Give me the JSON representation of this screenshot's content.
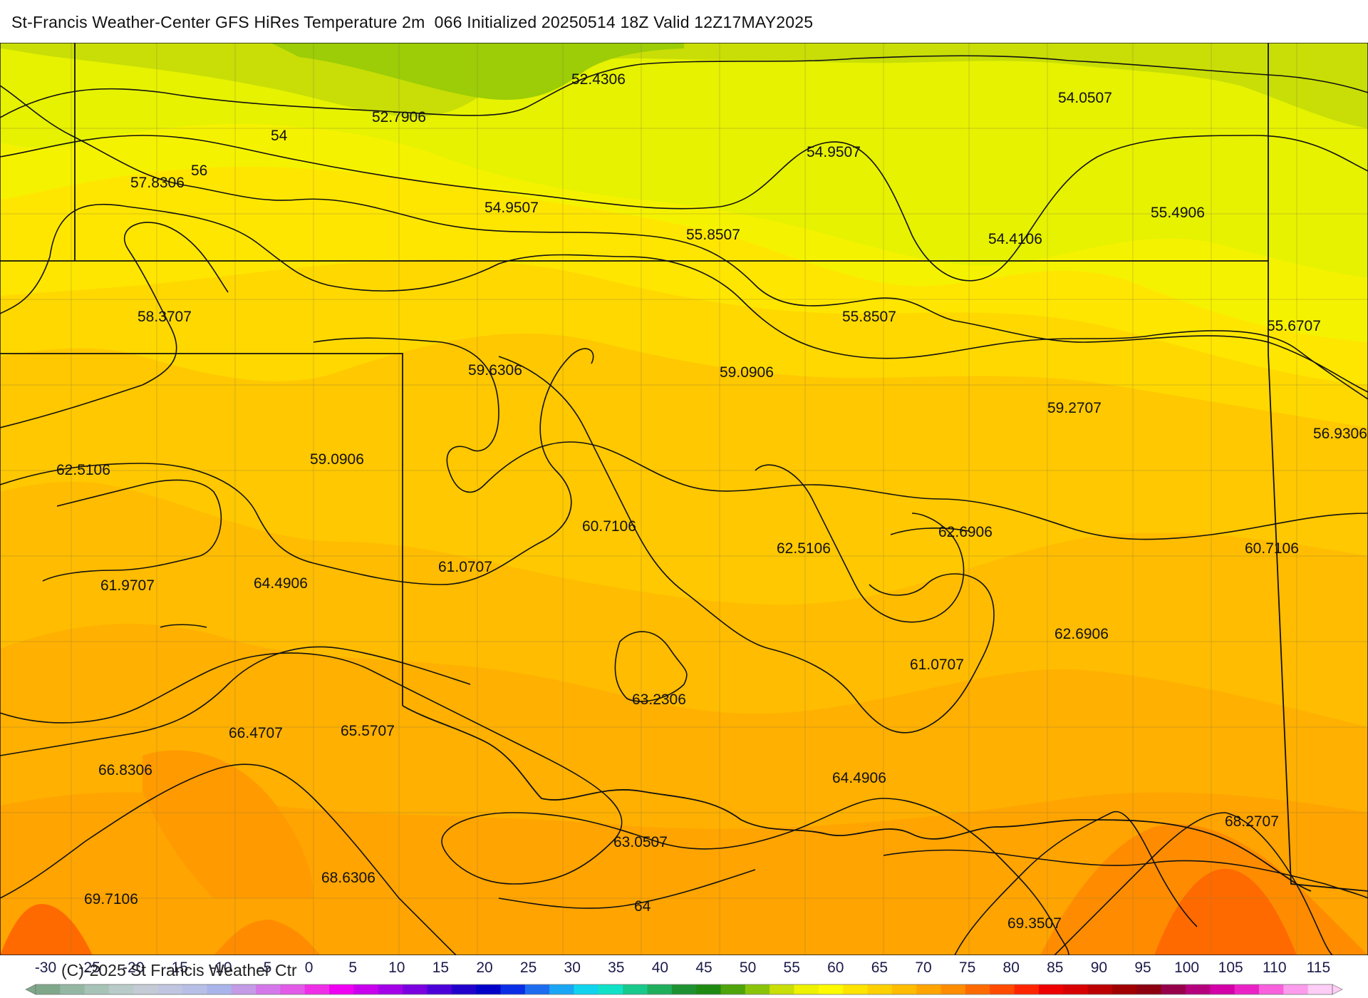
{
  "header": {
    "title": "St-Francis Weather-Center GFS HiRes Temperature 2m  066 Initialized 20250514 18Z Valid 12Z17MAY2025"
  },
  "map": {
    "field": "Temperature 2m",
    "contour_labels": [
      "54",
      "56",
      "64"
    ],
    "point_values": [
      "52.4306",
      "52.7906",
      "54.0507",
      "54.9507",
      "57.8306",
      "54.9507",
      "55.8507",
      "54.4106",
      "55.4906",
      "58.3707",
      "55.8507",
      "55.6707",
      "59.6306",
      "59.0906",
      "59.2707",
      "56.9306",
      "62.5106",
      "59.0906",
      "60.7106",
      "62.5106",
      "62.6906",
      "60.7106",
      "61.0707",
      "61.9707",
      "64.4906",
      "62.6906",
      "63.2306",
      "61.0707",
      "66.4707",
      "65.5707",
      "66.8306",
      "64.4906",
      "68.2707",
      "63.0507",
      "68.6306",
      "69.7106",
      "69.3507"
    ]
  },
  "colorbar": {
    "unit_ticks": [
      "-30",
      "-25",
      "-20",
      "-15",
      "-10",
      "-5",
      "0",
      "5",
      "10",
      "15",
      "20",
      "25",
      "30",
      "35",
      "40",
      "45",
      "50",
      "55",
      "60",
      "65",
      "70",
      "75",
      "80",
      "85",
      "90",
      "95",
      "100",
      "105",
      "110",
      "115"
    ],
    "colors": [
      "#7fa88a",
      "#94b7a4",
      "#a7c3b8",
      "#b9cbc9",
      "#c4cbd6",
      "#c0c5e0",
      "#b7bfe6",
      "#a9b5ea",
      "#c39be6",
      "#d477ea",
      "#e25ae8",
      "#ef2ee8",
      "#f000f2",
      "#c900ee",
      "#a300e8",
      "#7a00e0",
      "#4c00d8",
      "#2200cc",
      "#0000c8",
      "#0a2de6",
      "#1d6cf0",
      "#1aa6f4",
      "#10d4ee",
      "#10e2c8",
      "#18c98c",
      "#1fae5c",
      "#1e9232",
      "#1e8a12",
      "#4ea40a",
      "#8ac40a",
      "#c8de06",
      "#eef200",
      "#fffa00",
      "#ffe400",
      "#ffd000",
      "#ffbc00",
      "#ffa400",
      "#ff8c00",
      "#ff6a00",
      "#ff4a00",
      "#ff2400",
      "#ee0000",
      "#d80000",
      "#bc0000",
      "#a00000",
      "#8c0010",
      "#96004a",
      "#b4007c",
      "#d200a6",
      "#ea22c6",
      "#f860dc",
      "#fc9cec",
      "#fecdf6"
    ],
    "copyright": "(C)-2025 St Francis Weather Ctr"
  }
}
